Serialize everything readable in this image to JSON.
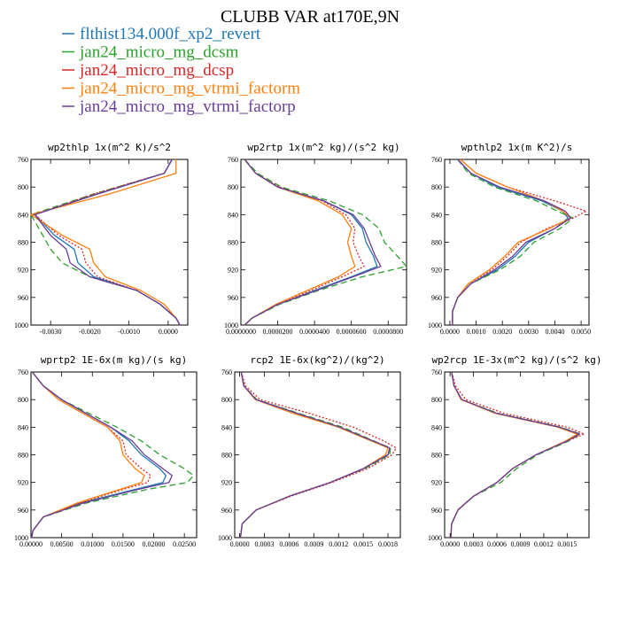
{
  "title": "CLUBB VAR at170E,9N",
  "legend": [
    {
      "label": "flthist134.000f_xp2_revert",
      "color": "#1f77b4",
      "dash": "solid"
    },
    {
      "label": "jan24_micro_mg_dcsm",
      "color": "#2ca02c",
      "dash": "dash"
    },
    {
      "label": "jan24_micro_mg_dcsp",
      "color": "#d62728",
      "dash": "dot"
    },
    {
      "label": "jan24_micro_mg_vtrmi_factorm",
      "color": "#ff7f0e",
      "dash": "solid"
    },
    {
      "label": "jan24_micro_mg_vtrmi_factorp",
      "color": "#6a3d9a",
      "dash": "solid"
    }
  ],
  "chart_data": [
    {
      "type": "line",
      "title": "wp2thlp  1x(m^2 K)/s^2",
      "xlim": [
        -0.0035,
        0.0005
      ],
      "ylim": [
        760,
        1000
      ],
      "xticks": [
        -0.003,
        -0.002,
        -0.001,
        0.0
      ],
      "xtick_labels": [
        "-0.0030",
        "-0.0020",
        "-0.0010",
        "0.0000"
      ],
      "yticks": [
        760,
        800,
        840,
        880,
        920,
        960,
        1000
      ],
      "ytick_labels": [
        "760",
        "800",
        "840",
        "880",
        "920",
        "960",
        "1000"
      ],
      "y": [
        760,
        780,
        810,
        840,
        870,
        890,
        910,
        930,
        950,
        970,
        990,
        1000
      ],
      "series": [
        {
          "name": "flthist134.000f_xp2_revert",
          "values": [
            0.0001,
            -0.0001,
            -0.0018,
            -0.0034,
            -0.0029,
            -0.0024,
            -0.0023,
            -0.0019,
            -0.0008,
            -0.0002,
            0.0002,
            0.0003
          ]
        },
        {
          "name": "jan24_micro_mg_dcsm",
          "values": [
            0.0001,
            -0.0001,
            -0.0019,
            -0.0035,
            -0.0032,
            -0.003,
            -0.0027,
            -0.002,
            -0.0008,
            -0.0002,
            0.0002,
            0.0003
          ]
        },
        {
          "name": "jan24_micro_mg_dcsp",
          "values": [
            0.0001,
            -0.0001,
            -0.0019,
            -0.0034,
            -0.0028,
            -0.0022,
            -0.0021,
            -0.0018,
            -0.0008,
            -0.0002,
            0.0002,
            0.0003
          ]
        },
        {
          "name": "jan24_micro_mg_vtrmi_factorm",
          "values": [
            0.0002,
            0.0002,
            -0.0015,
            -0.0035,
            -0.0027,
            -0.002,
            -0.0019,
            -0.0016,
            -0.0007,
            -0.0001,
            0.0002,
            0.0003
          ]
        },
        {
          "name": "jan24_micro_mg_vtrmi_factorp",
          "values": [
            0.0001,
            -0.0001,
            -0.0018,
            -0.0034,
            -0.003,
            -0.0026,
            -0.0025,
            -0.002,
            -0.0008,
            -0.0002,
            0.0002,
            0.0003
          ]
        }
      ]
    },
    {
      "type": "line",
      "title": "wp2rtp  1x(m^2 kg)/(s^2 kg)",
      "xlim": [
        0.0,
        9e-05
      ],
      "ylim": [
        760,
        1000
      ],
      "xticks": [
        0.0,
        2e-05,
        4e-05,
        6e-05,
        8e-05
      ],
      "xtick_labels": [
        "0.0000000",
        "0.0000200",
        "0.0000400",
        "0.0000600",
        "0.0000800"
      ],
      "yticks": [
        760,
        800,
        840,
        880,
        920,
        960,
        1000
      ],
      "ytick_labels": [
        "760",
        "800",
        "840",
        "880",
        "920",
        "960",
        "1000"
      ],
      "y": [
        760,
        780,
        800,
        820,
        840,
        860,
        880,
        900,
        915,
        930,
        950,
        970,
        990,
        1000
      ],
      "series": [
        {
          "name": "flthist134.000f_xp2_revert",
          "values": [
            2e-06,
            8e-06,
            2e-05,
            4.5e-05,
            6e-05,
            6.6e-05,
            6.8e-05,
            7.2e-05,
            7.4e-05,
            6e-05,
            4e-05,
            2e-05,
            6e-06,
            2e-06
          ]
        },
        {
          "name": "jan24_micro_mg_dcsm",
          "values": [
            2e-06,
            9e-06,
            2.2e-05,
            4.8e-05,
            6.6e-05,
            7.5e-05,
            7.8e-05,
            8.5e-05,
            9e-05,
            6.6e-05,
            4.2e-05,
            2.1e-05,
            6e-06,
            2e-06
          ]
        },
        {
          "name": "jan24_micro_mg_dcsp",
          "values": [
            2e-06,
            8e-06,
            2.1e-05,
            4.4e-05,
            5.7e-05,
            6.2e-05,
            6.1e-05,
            6.4e-05,
            6.7e-05,
            5.5e-05,
            3.8e-05,
            2e-05,
            6e-06,
            2e-06
          ]
        },
        {
          "name": "jan24_micro_mg_vtrmi_factorm",
          "values": [
            2e-06,
            8e-06,
            2e-05,
            4.2e-05,
            5.5e-05,
            6e-05,
            5.8e-05,
            6e-05,
            6.2e-05,
            5.3e-05,
            3.6e-05,
            1.9e-05,
            6e-06,
            2e-06
          ]
        },
        {
          "name": "jan24_micro_mg_vtrmi_factorp",
          "values": [
            2e-06,
            8e-06,
            2e-05,
            4.5e-05,
            6.1e-05,
            6.7e-05,
            7e-05,
            7.3e-05,
            7.6e-05,
            6.1e-05,
            4.1e-05,
            2e-05,
            6e-06,
            2e-06
          ]
        }
      ]
    },
    {
      "type": "line",
      "title": "wpthlp2  1x(m K^2)/s",
      "xlim": [
        -0.0002,
        0.0053
      ],
      "ylim": [
        760,
        1000
      ],
      "xticks": [
        0.0,
        0.001,
        0.002,
        0.003,
        0.004,
        0.005
      ],
      "xtick_labels": [
        "0.0000",
        "0.0010",
        "0.0020",
        "0.0030",
        "0.0040",
        "0.0050"
      ],
      "yticks": [
        760,
        800,
        840,
        880,
        920,
        960,
        1000
      ],
      "ytick_labels": [
        "760",
        "800",
        "840",
        "880",
        "920",
        "960",
        "1000"
      ],
      "y": [
        760,
        780,
        800,
        820,
        835,
        845,
        860,
        880,
        900,
        920,
        940,
        960,
        980,
        1000
      ],
      "series": [
        {
          "name": "flthist134.000f_xp2_revert",
          "values": [
            0.0003,
            0.0008,
            0.0018,
            0.0035,
            0.0043,
            0.0045,
            0.004,
            0.003,
            0.0025,
            0.0018,
            0.0008,
            0.0003,
            0.0001,
            0.0001
          ]
        },
        {
          "name": "jan24_micro_mg_dcsm",
          "values": [
            0.0003,
            0.0007,
            0.0017,
            0.0033,
            0.0041,
            0.0047,
            0.0042,
            0.0032,
            0.0027,
            0.0019,
            0.0008,
            0.0003,
            0.0001,
            0.0001
          ]
        },
        {
          "name": "jan24_micro_mg_dcsp",
          "values": [
            0.0004,
            0.001,
            0.0022,
            0.004,
            0.0052,
            0.0047,
            0.0037,
            0.0027,
            0.0022,
            0.0016,
            0.0007,
            0.0003,
            0.0001,
            0.0001
          ]
        },
        {
          "name": "jan24_micro_mg_vtrmi_factorm",
          "values": [
            0.0004,
            0.001,
            0.0022,
            0.0036,
            0.0043,
            0.0046,
            0.0038,
            0.0026,
            0.0021,
            0.0015,
            0.0007,
            0.0003,
            0.0001,
            0.0001
          ]
        },
        {
          "name": "jan24_micro_mg_vtrmi_factorp",
          "values": [
            0.0003,
            0.0008,
            0.0019,
            0.0036,
            0.0044,
            0.0046,
            0.004,
            0.0029,
            0.0024,
            0.0017,
            0.0008,
            0.0003,
            0.0001,
            0.0001
          ]
        }
      ]
    },
    {
      "type": "line",
      "title": "wprtp2  1E-6x(m kg)/(s kg)",
      "xlim": [
        0.0,
        0.027
      ],
      "ylim": [
        760,
        1000
      ],
      "xticks": [
        0.0,
        0.005,
        0.01,
        0.015,
        0.02,
        0.025
      ],
      "xtick_labels": [
        "0.00000",
        "0.00500",
        "0.01000",
        "0.01500",
        "0.02000",
        "0.02500"
      ],
      "yticks": [
        760,
        800,
        840,
        880,
        920,
        960,
        1000
      ],
      "ytick_labels": [
        "760",
        "800",
        "840",
        "880",
        "920",
        "960",
        "1000"
      ],
      "y": [
        760,
        780,
        800,
        820,
        840,
        860,
        880,
        900,
        910,
        920,
        930,
        950,
        970,
        990,
        1000
      ],
      "series": [
        {
          "name": "flthist134.000f_xp2_revert",
          "values": [
            0.0002,
            0.002,
            0.005,
            0.009,
            0.013,
            0.016,
            0.018,
            0.021,
            0.022,
            0.0215,
            0.017,
            0.008,
            0.002,
            0.0003,
            0.0001
          ]
        },
        {
          "name": "jan24_micro_mg_dcsm",
          "values": [
            0.0002,
            0.002,
            0.005,
            0.0095,
            0.014,
            0.018,
            0.021,
            0.025,
            0.0265,
            0.0255,
            0.019,
            0.009,
            0.002,
            0.0003,
            0.0001
          ]
        },
        {
          "name": "jan24_micro_mg_dcsp",
          "values": [
            0.0002,
            0.002,
            0.0045,
            0.0085,
            0.0125,
            0.015,
            0.0155,
            0.018,
            0.0195,
            0.019,
            0.015,
            0.008,
            0.002,
            0.0003,
            0.0001
          ]
        },
        {
          "name": "jan24_micro_mg_vtrmi_factorm",
          "values": [
            0.0002,
            0.002,
            0.0045,
            0.0085,
            0.0125,
            0.0145,
            0.015,
            0.017,
            0.0185,
            0.018,
            0.0145,
            0.0075,
            0.002,
            0.0003,
            0.0001
          ]
        },
        {
          "name": "jan24_micro_mg_vtrmi_factorp",
          "values": [
            0.0002,
            0.002,
            0.005,
            0.009,
            0.013,
            0.0165,
            0.0185,
            0.0215,
            0.023,
            0.0225,
            0.0175,
            0.0085,
            0.002,
            0.0003,
            0.0001
          ]
        }
      ]
    },
    {
      "type": "line",
      "title": "rcp2  1E-6x(kg^2)/(kg^2)",
      "xlim": [
        -6e-05,
        0.00195
      ],
      "ylim": [
        760,
        1000
      ],
      "xticks": [
        0.0,
        0.0003,
        0.0006,
        0.0009,
        0.0012,
        0.0015,
        0.0018
      ],
      "xtick_labels": [
        "0.0000",
        "0.0003",
        "0.0006",
        "0.0009",
        "0.0012",
        "0.0015",
        "0.0018"
      ],
      "yticks": [
        760,
        800,
        840,
        880,
        920,
        960,
        1000
      ],
      "ytick_labels": [
        "760",
        "800",
        "840",
        "880",
        "920",
        "960",
        "1000"
      ],
      "y": [
        760,
        780,
        800,
        820,
        840,
        860,
        870,
        880,
        900,
        920,
        940,
        960,
        980,
        1000
      ],
      "series": [
        {
          "name": "flthist134.000f_xp2_revert",
          "values": [
            2e-05,
            5e-05,
            0.0002,
            0.0007,
            0.0012,
            0.0016,
            0.00182,
            0.0018,
            0.0015,
            0.0011,
            0.0006,
            0.0002,
            3e-05,
            1e-05
          ]
        },
        {
          "name": "jan24_micro_mg_dcsm",
          "values": [
            2e-05,
            5e-05,
            0.00021,
            0.00072,
            0.00125,
            0.00163,
            0.00183,
            0.00182,
            0.00152,
            0.0011,
            0.0006,
            0.0002,
            3e-05,
            1e-05
          ]
        },
        {
          "name": "jan24_micro_mg_dcsp",
          "values": [
            2e-05,
            7e-05,
            0.00025,
            0.00085,
            0.00138,
            0.00175,
            0.0019,
            0.00185,
            0.00155,
            0.00112,
            0.00062,
            0.0002,
            3e-05,
            1e-05
          ]
        },
        {
          "name": "jan24_micro_mg_vtrmi_factorm",
          "values": [
            2e-05,
            5e-05,
            0.00019,
            0.00065,
            0.0012,
            0.0016,
            0.0018,
            0.00177,
            0.0015,
            0.0011,
            0.0006,
            0.0002,
            3e-05,
            1e-05
          ]
        },
        {
          "name": "jan24_micro_mg_vtrmi_factorp",
          "values": [
            2e-05,
            5e-05,
            0.0002,
            0.0007,
            0.00122,
            0.00162,
            0.00182,
            0.0018,
            0.0015,
            0.0011,
            0.0006,
            0.0002,
            3e-05,
            1e-05
          ]
        }
      ]
    },
    {
      "type": "line",
      "title": "wp2rcp  1E-3x(m^2 kg)/(s^2 kg)",
      "xlim": [
        -7e-05,
        0.00178
      ],
      "ylim": [
        760,
        1000
      ],
      "xticks": [
        0.0,
        0.0003,
        0.0006,
        0.0009,
        0.0012,
        0.0015
      ],
      "xtick_labels": [
        "0.0000",
        "0.0003",
        "0.0006",
        "0.0009",
        "0.0012",
        "0.0015"
      ],
      "yticks": [
        760,
        800,
        840,
        880,
        920,
        960,
        1000
      ],
      "ytick_labels": [
        "760",
        "800",
        "840",
        "880",
        "920",
        "960",
        "1000"
      ],
      "y": [
        760,
        780,
        800,
        820,
        840,
        850,
        860,
        880,
        900,
        920,
        940,
        960,
        980,
        1000
      ],
      "series": [
        {
          "name": "flthist134.000f_xp2_revert",
          "values": [
            2e-05,
            5e-05,
            0.00015,
            0.0006,
            0.0014,
            0.00165,
            0.0015,
            0.0011,
            0.0008,
            0.0006,
            0.0003,
            0.0001,
            2e-05,
            1e-05
          ]
        },
        {
          "name": "jan24_micro_mg_dcsm",
          "values": [
            2e-05,
            5e-05,
            0.00015,
            0.00062,
            0.00142,
            0.00167,
            0.00152,
            0.00112,
            0.00085,
            0.00065,
            0.0003,
            0.0001,
            2e-05,
            1e-05
          ]
        },
        {
          "name": "jan24_micro_mg_dcsp",
          "values": [
            2e-05,
            7e-05,
            0.0002,
            0.0007,
            0.0015,
            0.00172,
            0.0015,
            0.0011,
            0.0008,
            0.0006,
            0.0003,
            0.0001,
            2e-05,
            1e-05
          ]
        },
        {
          "name": "jan24_micro_mg_vtrmi_factorm",
          "values": [
            2e-05,
            5e-05,
            0.00014,
            0.00058,
            0.00138,
            0.00163,
            0.00148,
            0.0011,
            0.0008,
            0.0006,
            0.0003,
            0.0001,
            2e-05,
            1e-05
          ]
        },
        {
          "name": "jan24_micro_mg_vtrmi_factorp",
          "values": [
            2e-05,
            5e-05,
            0.00015,
            0.0006,
            0.0014,
            0.00166,
            0.0015,
            0.0011,
            0.0008,
            0.0006,
            0.0003,
            0.0001,
            2e-05,
            1e-05
          ]
        }
      ]
    }
  ]
}
